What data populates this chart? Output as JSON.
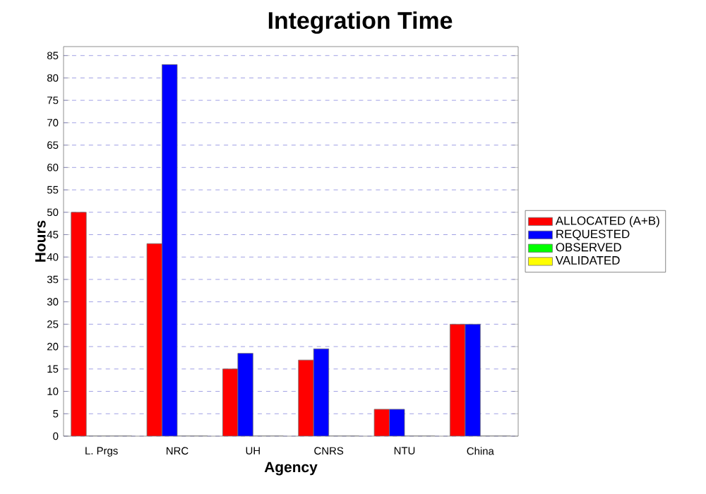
{
  "chart_data": {
    "type": "bar",
    "title": "Integration Time",
    "xlabel": "Agency",
    "ylabel": "Hours",
    "categories": [
      "L. Prgs",
      "NRC",
      "UH",
      "CNRS",
      "NTU",
      "China"
    ],
    "series": [
      {
        "name": "ALLOCATED (A+B)",
        "color": "#ff0000",
        "values": [
          50,
          43,
          15,
          17,
          6,
          25
        ]
      },
      {
        "name": "REQUESTED",
        "color": "#0000ff",
        "values": [
          0,
          83,
          18.5,
          19.5,
          6,
          25
        ]
      },
      {
        "name": "OBSERVED",
        "color": "#00ff00",
        "values": [
          0,
          0,
          0,
          0,
          0,
          0
        ]
      },
      {
        "name": "VALIDATED",
        "color": "#ffff00",
        "values": [
          0,
          0,
          0,
          0,
          0,
          0
        ]
      }
    ],
    "ylim": [
      0,
      87
    ],
    "yticks": [
      0,
      5,
      10,
      15,
      20,
      25,
      30,
      35,
      40,
      45,
      50,
      55,
      60,
      65,
      70,
      75,
      80,
      85
    ],
    "grid": "y",
    "legend": "right"
  }
}
